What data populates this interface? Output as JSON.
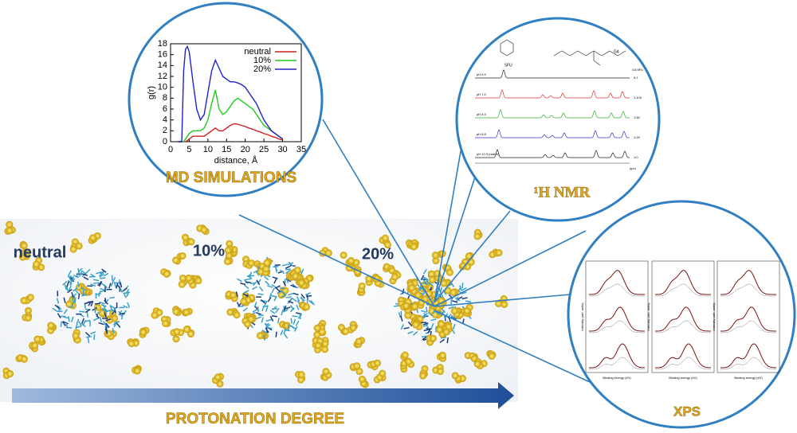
{
  "chart_data": {
    "type": "line",
    "ylabel": "g(r)",
    "xlabel": "distance, Å",
    "x": [
      2,
      3,
      3.5,
      4,
      4.5,
      5,
      6,
      7,
      8,
      9,
      10,
      11,
      12,
      13,
      14,
      15,
      16,
      17,
      18,
      19,
      20,
      21,
      22,
      23,
      24,
      25,
      26,
      27,
      28,
      29,
      30
    ],
    "series": [
      {
        "name": "neutral",
        "color": "#d42020",
        "values": [
          0,
          0,
          0,
          0,
          0.2,
          0.5,
          1,
          1,
          1,
          1,
          1.5,
          2,
          2.5,
          2,
          2,
          2.5,
          3,
          3.3,
          3.2,
          3,
          2.8,
          2.5,
          2.3,
          2,
          1.8,
          1.5,
          1.3,
          1,
          0.8,
          0.5,
          0.3
        ]
      },
      {
        "name": "10%",
        "color": "#22cc22",
        "values": [
          0,
          0,
          0,
          0.5,
          1,
          1.5,
          2,
          2,
          2,
          2.5,
          4,
          7,
          9.5,
          6,
          5,
          5.5,
          6.5,
          7.5,
          8,
          7.5,
          7,
          6.5,
          6,
          5,
          4,
          3,
          2.5,
          2,
          1.5,
          1,
          0.5
        ]
      },
      {
        "name": "20%",
        "color": "#2222cc",
        "values": [
          0,
          0,
          13,
          17,
          17.5,
          16.5,
          11,
          6,
          4,
          5,
          9,
          13,
          15,
          13.5,
          12,
          11.5,
          11,
          11,
          10.8,
          10.5,
          10,
          9,
          8,
          7,
          5.5,
          4,
          3,
          2,
          1.5,
          1,
          0.5
        ]
      }
    ],
    "xlim": [
      0,
      35
    ],
    "xticks": [
      0,
      5,
      10,
      15,
      20,
      25,
      30,
      35
    ],
    "ylim": [
      0,
      18
    ],
    "yticks": [
      0,
      2,
      4,
      6,
      8,
      10,
      12,
      14,
      16,
      18
    ],
    "legend": "upper right"
  },
  "labels": {
    "md": "MD SIMULATIONS",
    "nmr": "¹H NMR",
    "xps": "XPS",
    "axis": "PROTONATION DEGREE",
    "neutral": "neutral",
    "p10": "10%",
    "p20": "20%"
  },
  "nmr": {
    "mol1": "5FU",
    "mol2": "G4",
    "ratio_head": "G4:5FU",
    "rows": [
      {
        "ph": "pH 5.9",
        "ratio": "0:1"
      },
      {
        "ph": "pH 7.0",
        "ratio": "1:100"
      },
      {
        "ph": "pH 8.3",
        "ratio": "1:50"
      },
      {
        "ph": "pH 8.8",
        "ratio": "1:25"
      },
      {
        "ph": "pH 10.3 (native)",
        "ratio": "1:0"
      }
    ],
    "unit": "ppm"
  },
  "xps": {
    "ylabel": "Intensity (arb. units)",
    "xlabel": "Binding energy (eV)"
  }
}
